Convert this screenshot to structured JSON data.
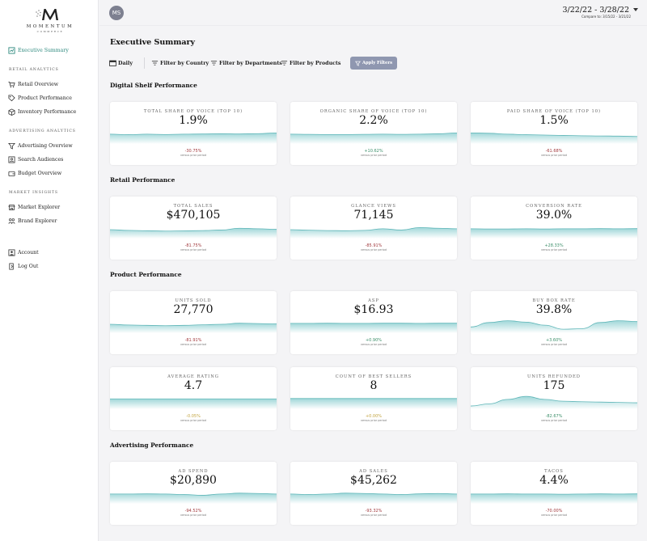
{
  "brand": {
    "name": "MOMENTUM",
    "sub": "COMMERCE"
  },
  "sidebar": {
    "executive": "Executive Summary",
    "sections": [
      {
        "title": "RETAIL ANALYTICS",
        "items": [
          "Retail Overview",
          "Product Performance",
          "Inventory Performance"
        ]
      },
      {
        "title": "ADVERTISING ANALYTICS",
        "items": [
          "Advertising Overview",
          "Search Audiences",
          "Budget Overview"
        ]
      },
      {
        "title": "MARKET INSIGHTS",
        "items": [
          "Market Explorer",
          "Brand Explorer"
        ]
      }
    ],
    "account": "Account",
    "logout": "Log Out"
  },
  "topbar": {
    "avatar_initials": "MS",
    "date_range": "3/22/22 - 3/28/22",
    "compare": "Compare to: 3/15/22 - 3/21/22"
  },
  "page_title": "Executive Summary",
  "filters": {
    "daily": "Daily",
    "country": "Filter by Country",
    "departments": "Filter by Departments",
    "products": "Filter by Products",
    "apply": "Apply Filters"
  },
  "versus_text": "versus prior period",
  "sections": [
    {
      "title": "Digital Shelf Performance",
      "cards": [
        {
          "label": "TOTAL SHARE OF VOICE (TOP 10)",
          "value": "1.9%",
          "change": "-30.75%",
          "trend": "neg",
          "spark": [
            0.55,
            0.52,
            0.55,
            0.53,
            0.55,
            0.56,
            0.57,
            0.56,
            0.58,
            0.62
          ]
        },
        {
          "label": "ORGANIC SHARE OF VOICE (TOP 10)",
          "value": "2.2%",
          "change": "+10.62%",
          "trend": "pos",
          "spark": [
            0.55,
            0.54,
            0.53,
            0.53,
            0.54,
            0.55,
            0.54,
            0.55,
            0.57,
            0.62
          ]
        },
        {
          "label": "PAID SHARE OF VOICE (TOP 10)",
          "value": "1.5%",
          "change": "-61.68%",
          "trend": "neg",
          "spark": [
            0.62,
            0.6,
            0.55,
            0.52,
            0.5,
            0.48,
            0.46,
            0.45,
            0.44,
            0.42
          ]
        }
      ]
    },
    {
      "title": "Retail Performance",
      "cards": [
        {
          "label": "TOTAL SALES",
          "value": "$470,105",
          "change": "-81.75%",
          "trend": "neg",
          "spark": [
            0.5,
            0.46,
            0.44,
            0.42,
            0.43,
            0.45,
            0.48,
            0.58,
            0.55,
            0.52
          ]
        },
        {
          "label": "GLANCE VIEWS",
          "value": "71,145",
          "change": "-85.91%",
          "trend": "neg",
          "spark": [
            0.5,
            0.47,
            0.45,
            0.44,
            0.46,
            0.55,
            0.48,
            0.62,
            0.58,
            0.55
          ]
        },
        {
          "label": "CONVERSION RATE",
          "value": "39.0%",
          "change": "+28.33%",
          "trend": "pos",
          "spark": [
            0.55,
            0.54,
            0.54,
            0.55,
            0.54,
            0.55,
            0.55,
            0.56,
            0.55,
            0.56
          ]
        }
      ]
    },
    {
      "title": "Product Performance",
      "cards": [
        {
          "label": "UNITS SOLD",
          "value": "27,770",
          "change": "-81.91%",
          "trend": "neg",
          "spark": [
            0.5,
            0.46,
            0.44,
            0.42,
            0.44,
            0.47,
            0.5,
            0.56,
            0.54,
            0.52
          ]
        },
        {
          "label": "ASP",
          "value": "$16.93",
          "change": "+0.90%",
          "trend": "pos",
          "spark": [
            0.55,
            0.55,
            0.56,
            0.55,
            0.55,
            0.56,
            0.56,
            0.55,
            0.56,
            0.56
          ]
        },
        {
          "label": "BUY BOX RATE",
          "value": "39.8%",
          "change": "+3.60%",
          "trend": "pos",
          "spark": [
            0.35,
            0.6,
            0.7,
            0.62,
            0.45,
            0.22,
            0.25,
            0.6,
            0.7,
            0.65
          ]
        },
        {
          "label": "AVERAGE RATING",
          "value": "4.7",
          "change": "-0.05%",
          "trend": "neu",
          "spark": [
            0.58,
            0.58,
            0.58,
            0.58,
            0.58,
            0.58,
            0.58,
            0.58,
            0.58,
            0.58
          ]
        },
        {
          "label": "COUNT OF BEST SELLERS",
          "value": "8",
          "change": "+0.00%",
          "trend": "neu",
          "spark": [
            0.6,
            0.6,
            0.6,
            0.6,
            0.6,
            0.6,
            0.6,
            0.6,
            0.6,
            0.6
          ]
        },
        {
          "label": "UNITS REFUNDED",
          "value": "175",
          "change": "-82.67%",
          "trend": "pos",
          "spark": [
            0.18,
            0.3,
            0.55,
            0.72,
            0.55,
            0.45,
            0.42,
            0.4,
            0.38,
            0.36
          ]
        }
      ]
    },
    {
      "title": "Advertising Performance",
      "cards": [
        {
          "label": "AD SPEND",
          "value": "$20,890",
          "change": "-94.52%",
          "trend": "neg",
          "spark": [
            0.55,
            0.55,
            0.56,
            0.55,
            0.52,
            0.48,
            0.55,
            0.6,
            0.58,
            0.55
          ]
        },
        {
          "label": "AD SALES",
          "value": "$45,262",
          "change": "-93.32%",
          "trend": "neg",
          "spark": [
            0.55,
            0.52,
            0.55,
            0.6,
            0.58,
            0.55,
            0.52,
            0.56,
            0.58,
            0.55
          ]
        },
        {
          "label": "TACOS",
          "value": "4.4%",
          "change": "-70.00%",
          "trend": "neg",
          "spark": [
            0.55,
            0.55,
            0.56,
            0.55,
            0.55,
            0.54,
            0.55,
            0.56,
            0.55,
            0.56
          ]
        }
      ]
    }
  ],
  "colors": {
    "accent": "#2f8a7f",
    "spark_fill": "#8fd0d2",
    "apply_btn": "#8f97b0",
    "negative": "#a23a3e",
    "positive": "#3c8f6a",
    "neutral": "#c3a542"
  }
}
